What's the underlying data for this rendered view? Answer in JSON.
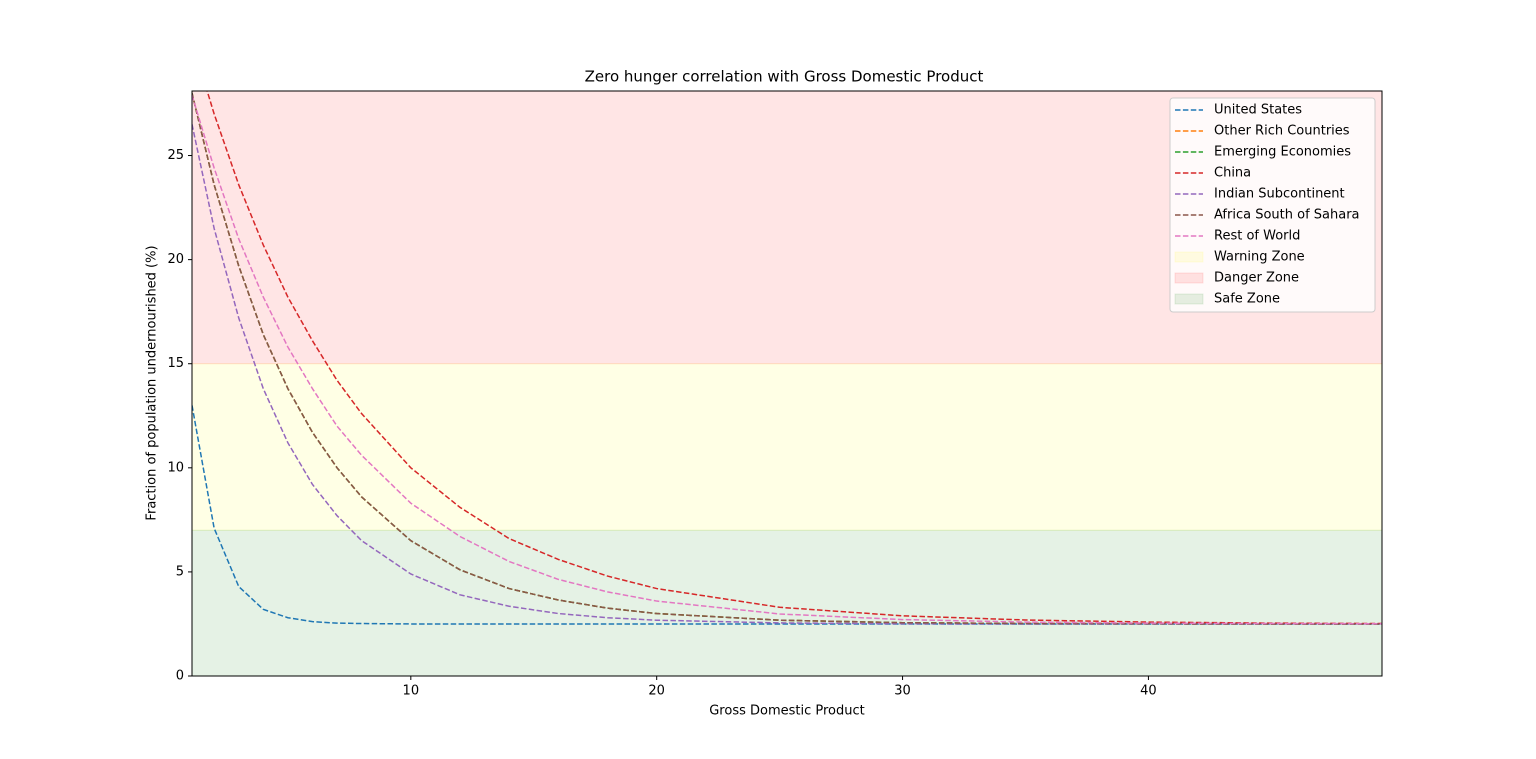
{
  "chart_data": {
    "type": "line",
    "title": "Zero hunger correlation with Gross Domestic Product",
    "x_label": "Gross Domestic Product",
    "y_label": "Fraction of population undernourished (%)",
    "xlim": [
      1.1,
      49.5
    ],
    "ylim": [
      0,
      28.1
    ],
    "xticks": [
      10,
      20,
      30,
      40
    ],
    "yticks": [
      0,
      5,
      10,
      15,
      20,
      25
    ],
    "legend": "upper right",
    "x": [
      1.1,
      2,
      3,
      4,
      5,
      6,
      7,
      8,
      10,
      12,
      14,
      16,
      18,
      20,
      25,
      30,
      35,
      40,
      45,
      49.5
    ],
    "series": [
      {
        "name": "United States",
        "color": "#1f77b4",
        "values": [
          13,
          7.1,
          4.3,
          3.2,
          2.8,
          2.61,
          2.54,
          2.52,
          2.5,
          2.5,
          2.5,
          2.5,
          2.5,
          2.5,
          2.5,
          2.5,
          2.5,
          2.5,
          2.5,
          2.5
        ]
      },
      {
        "name": "Other Rich Countries",
        "color": "#ff7f0e",
        "values": [
          28,
          23.6,
          19.7,
          16.4,
          13.8,
          11.7,
          10.0,
          8.6,
          6.5,
          5.1,
          4.2,
          3.65,
          3.26,
          3.0,
          2.68,
          2.56,
          2.52,
          2.51,
          2.5,
          2.5
        ]
      },
      {
        "name": "Emerging Economies",
        "color": "#2ca02c",
        "values": [
          28,
          23.6,
          19.7,
          16.4,
          13.8,
          11.7,
          10.0,
          8.6,
          6.5,
          5.1,
          4.2,
          3.65,
          3.26,
          3.0,
          2.68,
          2.56,
          2.52,
          2.51,
          2.5,
          2.5
        ]
      },
      {
        "name": "China",
        "color": "#d62728",
        "values": [
          30.5,
          27.0,
          23.6,
          20.7,
          18.2,
          16.1,
          14.2,
          12.6,
          10.0,
          8.1,
          6.6,
          5.6,
          4.8,
          4.2,
          3.3,
          2.89,
          2.69,
          2.59,
          2.54,
          2.52
        ]
      },
      {
        "name": "Indian Subcontinent",
        "color": "#9467bd",
        "values": [
          26.5,
          21.5,
          17.2,
          13.8,
          11.2,
          9.2,
          7.7,
          6.5,
          4.9,
          3.9,
          3.35,
          3.0,
          2.8,
          2.68,
          2.55,
          2.51,
          2.5,
          2.5,
          2.5,
          2.5
        ]
      },
      {
        "name": "Africa South of Sahara",
        "color": "#8c564b",
        "values": [
          28,
          23.6,
          19.7,
          16.4,
          13.8,
          11.7,
          10.0,
          8.6,
          6.5,
          5.1,
          4.2,
          3.65,
          3.26,
          3.0,
          2.68,
          2.56,
          2.52,
          2.51,
          2.5,
          2.5
        ]
      },
      {
        "name": "Rest of World",
        "color": "#e377c2",
        "values": [
          27.9,
          24.4,
          21.0,
          18.2,
          15.8,
          13.8,
          12.0,
          10.6,
          8.3,
          6.7,
          5.5,
          4.64,
          4.04,
          3.6,
          2.98,
          2.71,
          2.59,
          2.54,
          2.52,
          2.51
        ]
      }
    ],
    "zones": [
      {
        "name": "Warning Zone",
        "color": "yellow",
        "alpha": 0.1,
        "range": [
          7,
          15
        ]
      },
      {
        "name": "Danger Zone",
        "color": "red",
        "alpha": 0.1,
        "range": [
          15,
          30
        ]
      },
      {
        "name": "Safe Zone",
        "color": "green",
        "alpha": 0.1,
        "range": [
          0,
          7
        ]
      }
    ]
  }
}
